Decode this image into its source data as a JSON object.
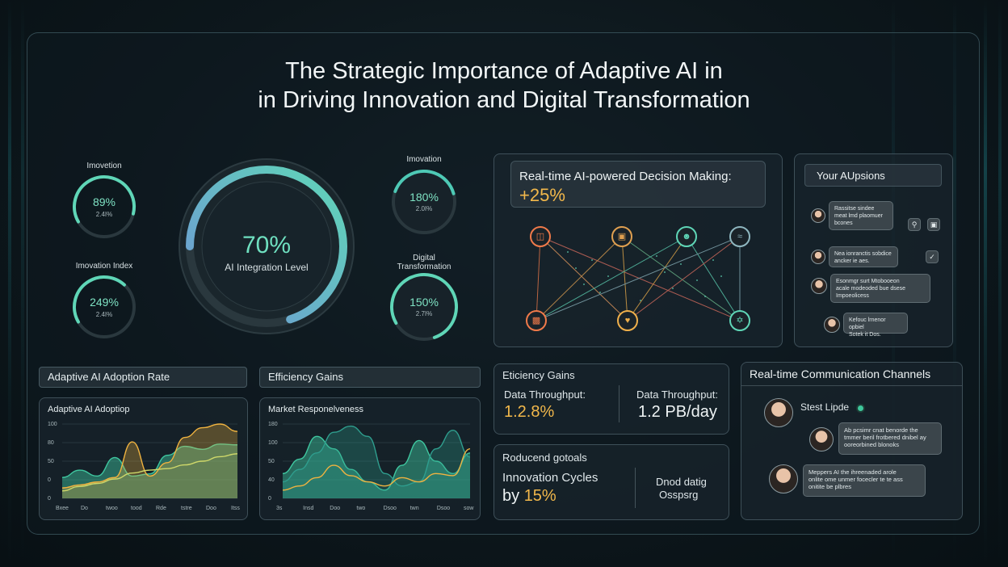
{
  "title": {
    "line1": "The Strategic Importance of Adaptive AI in",
    "line2": "in Driving Innovation and Digital Transformation"
  },
  "gauges": {
    "left_top": {
      "label": "Imovetion",
      "value": "89%",
      "sub": "2.4I%",
      "fraction": 0.62,
      "color": "#5fd6b7"
    },
    "left_bottom": {
      "label": "Imovation Index",
      "value": "249%",
      "sub": "2.4I%",
      "fraction": 0.45,
      "color": "#5fd6b7"
    },
    "main": {
      "value": "70%",
      "label": "AI Integration Level",
      "fraction": 0.7,
      "color_start": "#5fd6b7",
      "color_end": "#6f95d6"
    },
    "right_top": {
      "label": "Imovation",
      "value": "180%",
      "sub": "2.0I%",
      "fraction": 0.4,
      "color": "#4ec9b5"
    },
    "right_bottom": {
      "label_line1": "Digital",
      "label_line2": "Transformation",
      "value": "150%",
      "sub": "2.7I%",
      "fraction": 0.78,
      "color": "#5fd6b7"
    }
  },
  "decision": {
    "heading": "Real-time AI-powered Decision Making:",
    "value": "+25%",
    "value_color": "#f2b84b",
    "top_icons": [
      "database-icon",
      "robot-icon",
      "user-icon",
      "chart-icon"
    ],
    "bottom_icons": [
      "bar-chart-icon",
      "heart-icon",
      "network-icon"
    ]
  },
  "apps_panel": {
    "heading": "Your AUpsions",
    "messages": [
      {
        "lines": [
          "Rassitse sindee",
          "meat lmd plaomuer",
          "bcones"
        ]
      },
      {
        "lines": [
          "Nea ionranctis sobdice",
          "ancker ie aes."
        ]
      },
      {
        "lines": [
          "Esonmgr surt Mtobooeon",
          "acale modeoded bue dsese",
          "Impoeolicess"
        ]
      },
      {
        "lines": [
          "Kefouc lrnenor opbiel",
          "Sotek it Dos."
        ]
      }
    ],
    "buttons": [
      "search-icon",
      "lock-icon",
      "check-icon"
    ]
  },
  "adoption": {
    "header": "Adaptive AI Adoption Rate",
    "chart_title": "Adaptive AI Adoptiop"
  },
  "efficiency": {
    "header": "Efficiency Gains",
    "chart_title": "Market Responelveness"
  },
  "chart_data": [
    {
      "type": "area",
      "title": "Adaptive AI Adoptiop",
      "y_ticks": [
        "100",
        "80",
        "50",
        "0",
        "0"
      ],
      "x_ticks": [
        "Bxee",
        "Do",
        "twoo",
        "tood",
        "Rde",
        "tstre",
        "Doo",
        "Itss"
      ],
      "ylim": [
        0,
        100
      ],
      "series": [
        {
          "values": [
            28,
            38,
            30,
            55,
            30,
            33,
            58,
            70,
            66,
            73,
            72
          ],
          "color": "#3fc7a0"
        },
        {
          "values": [
            14,
            18,
            22,
            28,
            76,
            30,
            48,
            82,
            95,
            100,
            90
          ],
          "color": "#f0b340"
        },
        {
          "values": [
            10,
            16,
            20,
            26,
            34,
            38,
            40,
            45,
            50,
            56,
            60
          ],
          "color": "#cfd86a"
        }
      ]
    },
    {
      "type": "area",
      "title": "Market Responelveness",
      "y_ticks": [
        "180",
        "100",
        "50",
        "40",
        "0"
      ],
      "x_ticks": [
        "3s",
        "Insd",
        "Doo",
        "two",
        "Dsoo",
        "twn",
        "Dsoo",
        "sow"
      ],
      "ylim": [
        0,
        180
      ],
      "series": [
        {
          "values": [
            60,
            95,
            150,
            120,
            70,
            40,
            20,
            80,
            140,
            90,
            60,
            110
          ],
          "color": "#3fc7a0"
        },
        {
          "values": [
            40,
            70,
            110,
            160,
            175,
            150,
            60,
            30,
            40,
            120,
            165,
            100
          ],
          "color": "#2f9e8e"
        },
        {
          "values": [
            20,
            30,
            50,
            80,
            55,
            40,
            30,
            50,
            40,
            60,
            55,
            120
          ],
          "color": "#f0b340"
        }
      ]
    }
  ],
  "throughput": {
    "heading": "Eticiency Gains",
    "left_label": "Data Throughput:",
    "left_value": "1.2.8%",
    "right_label": "Data Throughput:",
    "right_value": "1.2 PB/day"
  },
  "reduced": {
    "heading": "Roducend gotoals",
    "line1": "Innovation Cycles",
    "line2_prefix": "by",
    "line2_value": "15%",
    "right_line1": "Dnod datig",
    "right_line2": "Osspsrg"
  },
  "comms": {
    "heading": "Real-time Communication Channels",
    "user_name": "Stest Lipde",
    "msg1": [
      "Ab pcsimr cnat benorde the",
      "tmmer beril frotbered dnibel ay",
      "ooreorbined blonoks"
    ],
    "msg2": [
      "Meppers AI the ihreenaded arole",
      "onlite ome unmer focecler te te ass",
      "onitite be plbres"
    ]
  },
  "colors": {
    "accent_teal": "#5fd6b7",
    "accent_orange": "#f2b84b",
    "accent_blue": "#6f95d6",
    "panel_border": "#8caab4"
  }
}
